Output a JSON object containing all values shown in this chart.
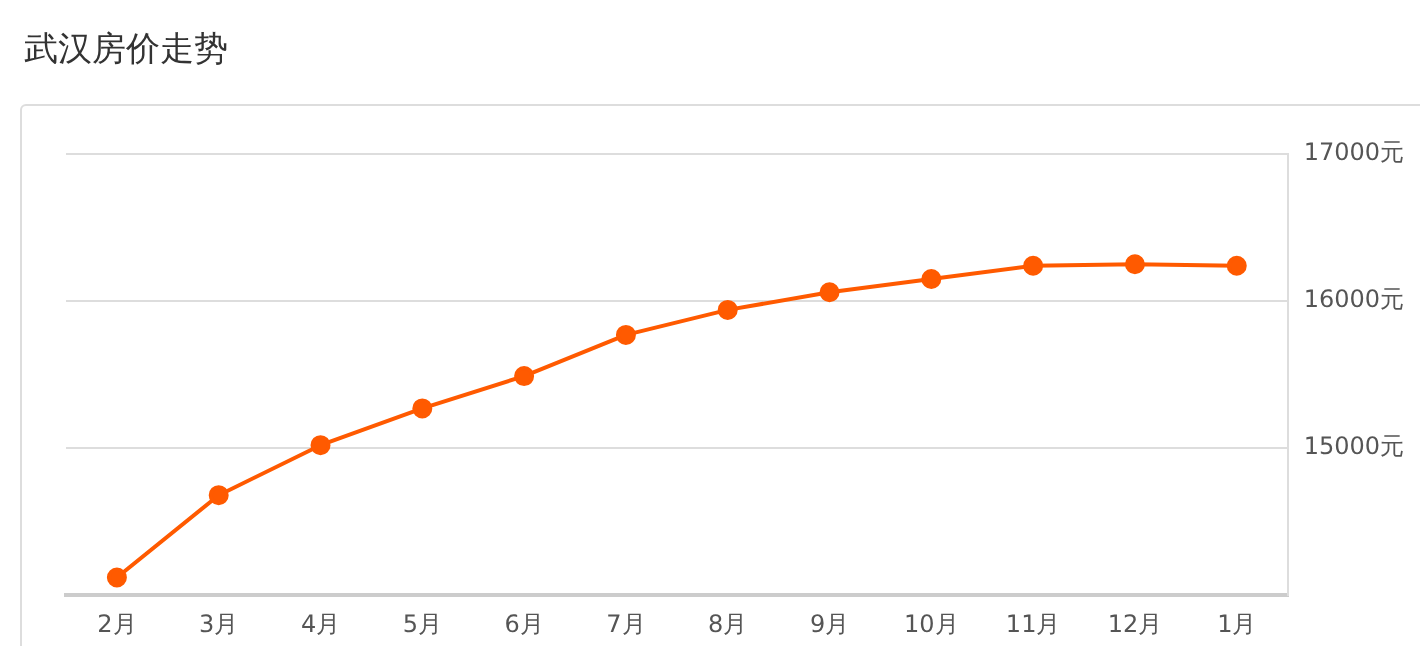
{
  "chart_data": {
    "type": "line",
    "title": "武汉房价走势",
    "categories": [
      "2月",
      "3月",
      "4月",
      "5月",
      "6月",
      "7月",
      "8月",
      "9月",
      "10月",
      "11月",
      "12月",
      "1月"
    ],
    "series": [
      {
        "color": "#ff5a00",
        "values": [
          14120,
          14680,
          15020,
          15270,
          15490,
          15770,
          15940,
          16060,
          16150,
          16240,
          16250,
          16240
        ]
      }
    ],
    "ylim": [
      14000,
      17000
    ],
    "yticks": [
      {
        "value": 14000,
        "label": null
      },
      {
        "value": 15000,
        "label": "15000元"
      },
      {
        "value": 16000,
        "label": "16000元"
      },
      {
        "value": 17000,
        "label": "17000元"
      }
    ],
    "grid": "y",
    "legend": false,
    "marker": "circle",
    "line_style": "solid"
  }
}
